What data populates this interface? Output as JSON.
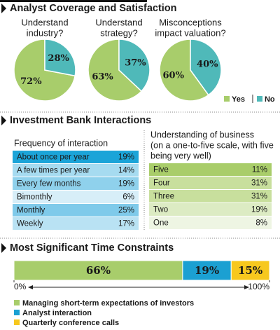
{
  "headings": [
    "Analyst Coverage and Satisfaction",
    "Investment Bank Interactions",
    "Most Significant Time Constraints"
  ],
  "chart_data": [
    {
      "type": "pie",
      "title_lines": [
        "Understand",
        "industry?"
      ],
      "categories": [
        "Yes",
        "No"
      ],
      "values": [
        72,
        28
      ],
      "value_labels": [
        "72%",
        "28%"
      ],
      "colors": [
        "#a8cd6b",
        "#4fb9b9"
      ]
    },
    {
      "type": "pie",
      "title_lines": [
        "Understand",
        "strategy?"
      ],
      "categories": [
        "Yes",
        "No"
      ],
      "values": [
        63,
        37
      ],
      "value_labels": [
        "63%",
        "37%"
      ],
      "colors": [
        "#a8cd6b",
        "#4fb9b9"
      ]
    },
    {
      "type": "pie",
      "title_lines": [
        "Misconceptions",
        "impact valuation?"
      ],
      "categories": [
        "Yes",
        "No"
      ],
      "values": [
        60,
        40
      ],
      "value_labels": [
        "60%",
        "40%"
      ],
      "colors": [
        "#a8cd6b",
        "#4fb9b9"
      ]
    },
    {
      "type": "stacked_bar",
      "series": [
        {
          "name": "Managing short-term expectations of investors",
          "color": "#a8cd6b",
          "values": [
            66
          ],
          "value_labels": [
            "66%"
          ]
        },
        {
          "name": "Analyst interaction",
          "color": "#1ba0d2",
          "values": [
            19
          ],
          "value_labels": [
            "19%"
          ]
        },
        {
          "name": "Quarterly conference calls",
          "color": "#f7c81e",
          "values": [
            15
          ],
          "value_labels": [
            "15%"
          ]
        }
      ],
      "xlim": [
        0,
        100
      ],
      "xticks": [
        {
          "value": 0,
          "label": "0%"
        },
        {
          "value": 100,
          "label": "100%"
        }
      ]
    }
  ],
  "tables": [
    {
      "title_lines": [
        "Frequency of interaction"
      ],
      "row_colors": [
        "#1ba4d8",
        "#a6dbf0",
        "#8fd1ec",
        "#d7eef8",
        "#7fcaea",
        "#b9e2f3"
      ],
      "rows": [
        [
          "About once per year",
          "19%"
        ],
        [
          "A few times per year",
          "14%"
        ],
        [
          "Every few months",
          "19%"
        ],
        [
          "Bimonthly",
          "6%"
        ],
        [
          "Monthly",
          "25%"
        ],
        [
          "Weekly",
          "17%"
        ]
      ]
    },
    {
      "title_lines": [
        "Understanding of business",
        "(on a one-to-five scale, with five",
        "being very well)"
      ],
      "row_colors": [
        "#a9cd6a",
        "#c8df9d",
        "#c8df9d",
        "#dcebc3",
        "#eef5e3"
      ],
      "rows": [
        [
          "Five",
          "11%"
        ],
        [
          "Four",
          "31%"
        ],
        [
          "Three",
          "31%"
        ],
        [
          "Two",
          "19%"
        ],
        [
          "One",
          "8%"
        ]
      ]
    }
  ]
}
